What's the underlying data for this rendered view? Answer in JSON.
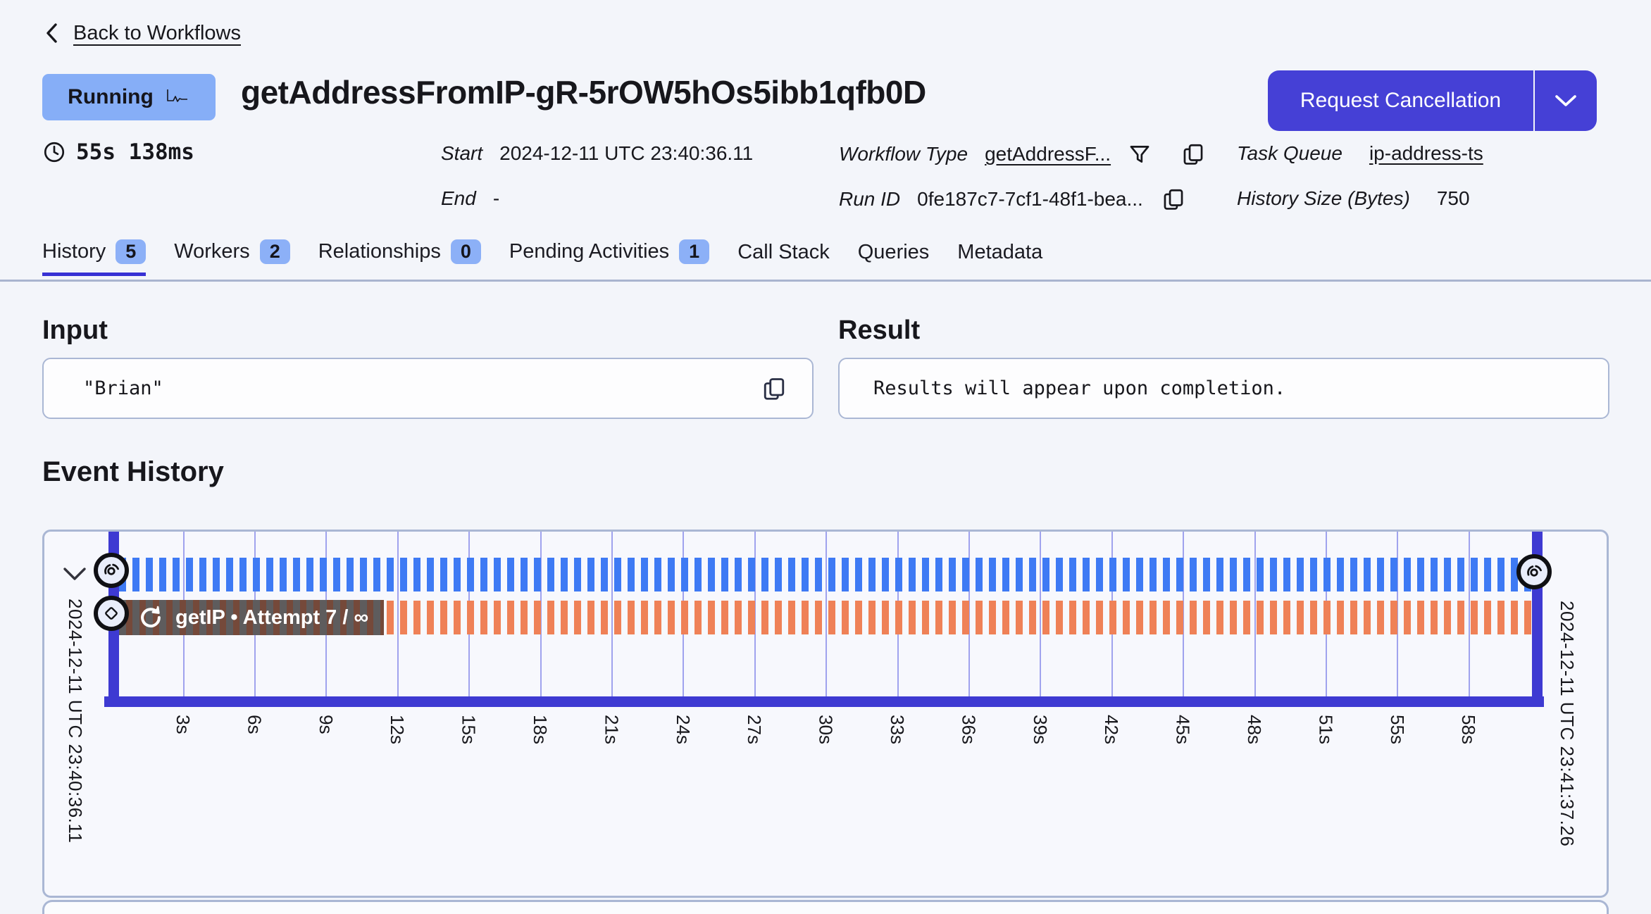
{
  "nav": {
    "back_label": "Back to Workflows"
  },
  "header": {
    "status": "Running",
    "title": "getAddressFromIP-gR-5rOW5hOs5ibb1qfb0D",
    "cancel_button_label": "Request Cancellation"
  },
  "meta": {
    "duration": "55s 138ms",
    "start_label": "Start",
    "start_value": "2024-12-11 UTC 23:40:36.11",
    "end_label": "End",
    "end_value": "-",
    "workflow_type_label": "Workflow Type",
    "workflow_type_value": "getAddressF...",
    "run_id_label": "Run ID",
    "run_id_value": "0fe187c7-7cf1-48f1-bea...",
    "task_queue_label": "Task Queue",
    "task_queue_value": "ip-address-ts",
    "history_size_label": "History Size (Bytes)",
    "history_size_value": "750"
  },
  "tabs": [
    {
      "label": "History",
      "count": "5",
      "active": true
    },
    {
      "label": "Workers",
      "count": "2",
      "active": false
    },
    {
      "label": "Relationships",
      "count": "0",
      "active": false
    },
    {
      "label": "Pending Activities",
      "count": "1",
      "active": false
    },
    {
      "label": "Call Stack",
      "count": "",
      "active": false
    },
    {
      "label": "Queries",
      "count": "",
      "active": false
    },
    {
      "label": "Metadata",
      "count": "",
      "active": false
    }
  ],
  "input_section": {
    "heading": "Input",
    "value": "\"Brian\""
  },
  "result_section": {
    "heading": "Result",
    "value": "Results will appear upon completion."
  },
  "event_history": {
    "heading": "Event History",
    "start_timestamp": "2024-12-11 UTC 23:40:36.11",
    "end_timestamp": "2024-12-11 UTC 23:41:37.26",
    "activity_label": "getIP • Attempt 7 / ∞",
    "axis_ticks": [
      "3s",
      "6s",
      "9s",
      "12s",
      "15s",
      "18s",
      "21s",
      "24s",
      "27s",
      "30s",
      "33s",
      "36s",
      "39s",
      "42s",
      "45s",
      "48s",
      "51s",
      "55s",
      "58s"
    ],
    "rows": [
      {
        "name": "workflow-execution",
        "style": "blue-dashed"
      },
      {
        "name": "activity-getIP",
        "style": "orange-dashed",
        "label": "getIP • Attempt 7 / ∞"
      }
    ],
    "colors": {
      "workflow_dash": "#3e7af4",
      "activity_dash": "#ef8157",
      "marker": "#3e3ad2",
      "gridline": "#a0a3ee",
      "border": "#aab7d4"
    }
  },
  "theme": {
    "accent_button": "#4540d6",
    "status_badge": "#86aef7",
    "tab_badge": "#8cb0f7",
    "active_tab_underline": "#3831d4",
    "background": "#f3f5fa"
  }
}
